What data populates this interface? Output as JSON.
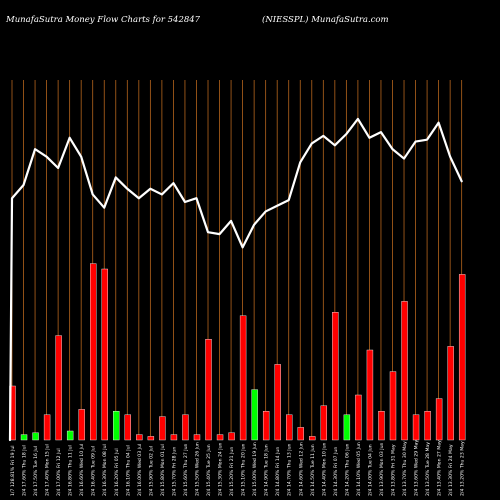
{
  "header": {
    "left": "MunafaSutra  Money Flow  Charts for 542847",
    "right": "(NIESSPL) MunafaSutra.com"
  },
  "colors": {
    "background": "#000000",
    "gridline": "#b5651d",
    "line": "#ffffff",
    "bar_up": "#00ff00",
    "bar_down": "#ff0000",
    "bar_border": "#ffffff"
  },
  "chart_data": {
    "type": "bar",
    "title": "MunafaSutra  Money Flow  Charts for 542847",
    "grid": true,
    "categories": [
      "Fri 19 Jul",
      "Thu 18 Jul",
      "Tue 16 Jul",
      "Mon 15 Jul",
      "Fri 12 Jul",
      "Thu 11 Jul",
      "Wed 10 Jul",
      "Tue 09 Jul",
      "Mon 08 Jul",
      "Fri 05 Jul",
      "Thu 04 Jul",
      "Wed 03 Jul",
      "Tue 02 Jul",
      "Mon 01 Jul",
      "Fri 28 Jun",
      "Thu 27 Jun",
      "Wed 26 Jun",
      "Tue 25 Jun",
      "Mon 24 Jun",
      "Fri 21 Jun",
      "Thu 20 Jun",
      "Wed 19 Jun",
      "Tue 18 Jun",
      "Fri 14 Jun",
      "Thu 13 Jun",
      "Wed 12 Jun",
      "Tue 11 Jun",
      "Mon 10 Jun",
      "Fri 07 Jun",
      "Thu 06 Jun",
      "Wed 05 Jun",
      "Tue 04 Jun",
      "Mon 03 Jun",
      "Fri 31 May",
      "Thu 30 May",
      "Wed 29 May",
      "Tue 28 May",
      "Mon 27 May",
      "Fri 24 May",
      "Thu 23 May"
    ],
    "tick_labels": [
      "1/7 128.81%",
      "2/4 17.60%",
      "2/4 17.50%",
      "2/4 17.40%",
      "2/4 17.00%",
      "2/4 16.80%",
      "2/4 16.60%",
      "2/4 16.40%",
      "2/4 16.30%",
      "2/4 16.20%",
      "2/4 16.10%",
      "2/4 16.00%",
      "2/4 15.90%",
      "2/4 15.80%",
      "2/4 15.70%",
      "2/4 15.60%",
      "2/4 15.50%",
      "2/4 15.40%",
      "2/4 15.30%",
      "2/4 15.20%",
      "2/4 15.10%",
      "2/4 15.00%",
      "2/4 14.90%",
      "2/4 14.80%",
      "2/4 14.70%",
      "2/4 14.60%",
      "2/4 14.50%",
      "2/4 14.40%",
      "2/4 14.30%",
      "2/4 14.20%",
      "2/4 14.10%",
      "2/4 14.00%",
      "2/4 13.90%",
      "2/4 13.80%",
      "2/4 13.70%",
      "2/4 13.60%",
      "2/4 13.50%",
      "2/4 13.40%",
      "2/4 13.30%",
      "2/4 13.20%"
    ],
    "bars": [
      {
        "value": 30,
        "direction": "down"
      },
      {
        "value": 3,
        "direction": "up"
      },
      {
        "value": 4,
        "direction": "up"
      },
      {
        "value": 14,
        "direction": "down"
      },
      {
        "value": 58,
        "direction": "down"
      },
      {
        "value": 5,
        "direction": "up"
      },
      {
        "value": 17,
        "direction": "down"
      },
      {
        "value": 98,
        "direction": "down"
      },
      {
        "value": 95,
        "direction": "down"
      },
      {
        "value": 16,
        "direction": "up"
      },
      {
        "value": 14,
        "direction": "down"
      },
      {
        "value": 3,
        "direction": "down"
      },
      {
        "value": 2,
        "direction": "down"
      },
      {
        "value": 13,
        "direction": "down"
      },
      {
        "value": 3,
        "direction": "down"
      },
      {
        "value": 14,
        "direction": "down"
      },
      {
        "value": 3,
        "direction": "down"
      },
      {
        "value": 56,
        "direction": "down"
      },
      {
        "value": 3,
        "direction": "down"
      },
      {
        "value": 4,
        "direction": "down"
      },
      {
        "value": 69,
        "direction": "down"
      },
      {
        "value": 28,
        "direction": "up"
      },
      {
        "value": 16,
        "direction": "down"
      },
      {
        "value": 42,
        "direction": "down"
      },
      {
        "value": 14,
        "direction": "down"
      },
      {
        "value": 7,
        "direction": "down"
      },
      {
        "value": 2,
        "direction": "down"
      },
      {
        "value": 19,
        "direction": "down"
      },
      {
        "value": 71,
        "direction": "down"
      },
      {
        "value": 14,
        "direction": "up"
      },
      {
        "value": 25,
        "direction": "down"
      },
      {
        "value": 50,
        "direction": "down"
      },
      {
        "value": 16,
        "direction": "down"
      },
      {
        "value": 38,
        "direction": "down"
      },
      {
        "value": 77,
        "direction": "down"
      },
      {
        "value": 14,
        "direction": "down"
      },
      {
        "value": 16,
        "direction": "down"
      },
      {
        "value": 23,
        "direction": "down"
      },
      {
        "value": 52,
        "direction": "down"
      },
      {
        "value": 92,
        "direction": "down"
      }
    ],
    "line_values": [
      128,
      135,
      154,
      150,
      144,
      160,
      150,
      130,
      123,
      139,
      133,
      128,
      133,
      130,
      136,
      126,
      128,
      110,
      109,
      116,
      102,
      114,
      121,
      124,
      127,
      147,
      157,
      161,
      156,
      162,
      170,
      160,
      163,
      154,
      149,
      158,
      159,
      168,
      150,
      137
    ],
    "bar_ylim": [
      0,
      100
    ],
    "line_ylim": [
      0,
      180
    ]
  }
}
